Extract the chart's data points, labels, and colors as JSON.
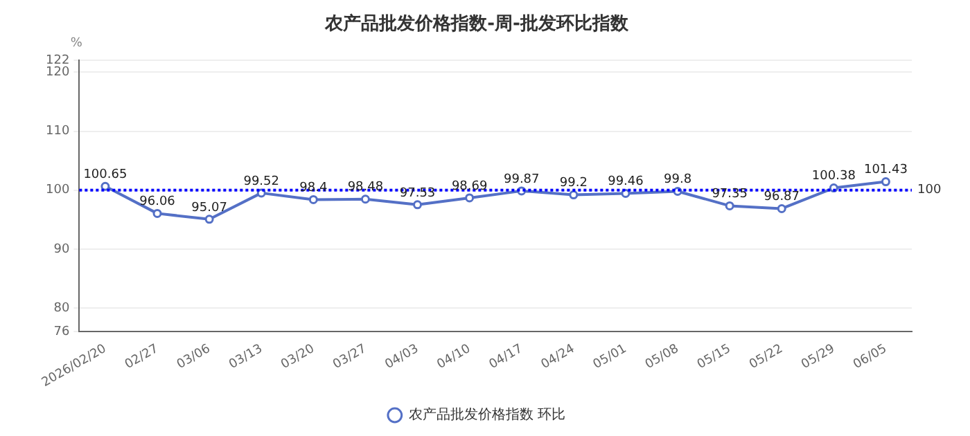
{
  "chart_data": {
    "type": "line",
    "title": "农产品批发价格指数-周-批发环比指数",
    "ylabel": "%",
    "categories": [
      "2026/02/20",
      "02/27",
      "03/06",
      "03/13",
      "03/20",
      "03/27",
      "04/03",
      "04/10",
      "04/17",
      "04/24",
      "05/01",
      "05/08",
      "05/15",
      "05/22",
      "05/29",
      "06/05"
    ],
    "series": [
      {
        "name": "农产品批发价格指数 环比",
        "color": "#5470c6",
        "values": [
          100.65,
          96.06,
          95.07,
          99.52,
          98.4,
          98.48,
          97.53,
          98.69,
          99.87,
          99.2,
          99.46,
          99.8,
          97.35,
          96.87,
          100.38,
          101.43
        ]
      }
    ],
    "ylim": [
      76,
      122
    ],
    "yticks": [
      76,
      80,
      90,
      100,
      110,
      120,
      122
    ],
    "grid": "y",
    "legend": "bottom",
    "marker": "circle",
    "line_style": "solid",
    "data_labels": true,
    "ref_lines": [
      {
        "axis": "y",
        "value": 100,
        "label": "100",
        "color": "#0000ff",
        "line_style": "dotted"
      }
    ]
  }
}
